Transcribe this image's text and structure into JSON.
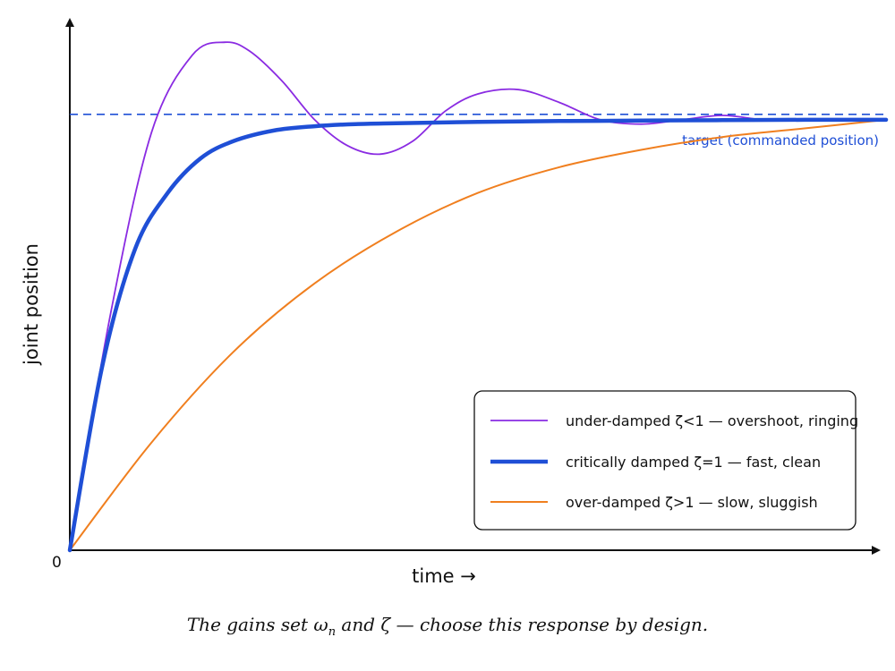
{
  "chart_data": {
    "type": "line",
    "xlabel": "time →",
    "ylabel": "joint position",
    "origin_label": "0",
    "xlim": [
      0,
      10
    ],
    "ylim": [
      0,
      1.22
    ],
    "target": {
      "value": 1.0,
      "label": "target (commanded position)",
      "color": "#1f4fd6",
      "style": "dashed"
    },
    "series": [
      {
        "name": "under-damped ζ<1 — overshoot, ringing",
        "color": "#8a2be2",
        "width": 1.8,
        "x": [
          0,
          0.5,
          1.0,
          1.5,
          1.9,
          2.2,
          2.6,
          3.0,
          3.4,
          3.8,
          4.2,
          4.6,
          5.0,
          5.5,
          6.0,
          6.5,
          7.0,
          7.5,
          8.0,
          8.5,
          9.0,
          9.5,
          10.0
        ],
        "values": [
          0,
          0.55,
          0.97,
          1.15,
          1.18,
          1.16,
          1.09,
          1.0,
          0.94,
          0.92,
          0.95,
          1.02,
          1.06,
          1.07,
          1.04,
          1.0,
          0.99,
          1.0,
          1.01,
          1.0,
          1.0,
          1.0,
          1.0
        ]
      },
      {
        "name": "critically damped ζ=1 — fast, clean",
        "color": "#1f4fd6",
        "width": 4.5,
        "x": [
          0,
          0.4,
          0.8,
          1.2,
          1.6,
          2.0,
          2.5,
          3.0,
          3.5,
          4.0,
          5.0,
          6.0,
          7.0,
          8.0,
          9.0,
          10.0
        ],
        "values": [
          0,
          0.43,
          0.7,
          0.83,
          0.91,
          0.95,
          0.975,
          0.985,
          0.99,
          0.992,
          0.995,
          0.997,
          0.998,
          0.999,
          1.0,
          1.0
        ]
      },
      {
        "name": "over-damped ζ>1 — slow, sluggish",
        "color": "#f07f1f",
        "width": 2.0,
        "x": [
          0,
          1,
          2,
          3,
          4,
          5,
          6,
          7,
          8,
          9,
          10
        ],
        "values": [
          0,
          0.25,
          0.46,
          0.62,
          0.74,
          0.83,
          0.89,
          0.93,
          0.96,
          0.98,
          1.0
        ]
      }
    ],
    "legend_position": "bottom-right",
    "grid": false
  },
  "caption": {
    "pre": "The gains set ω",
    "sub": "n",
    "post": " and ζ — choose this response by design."
  }
}
